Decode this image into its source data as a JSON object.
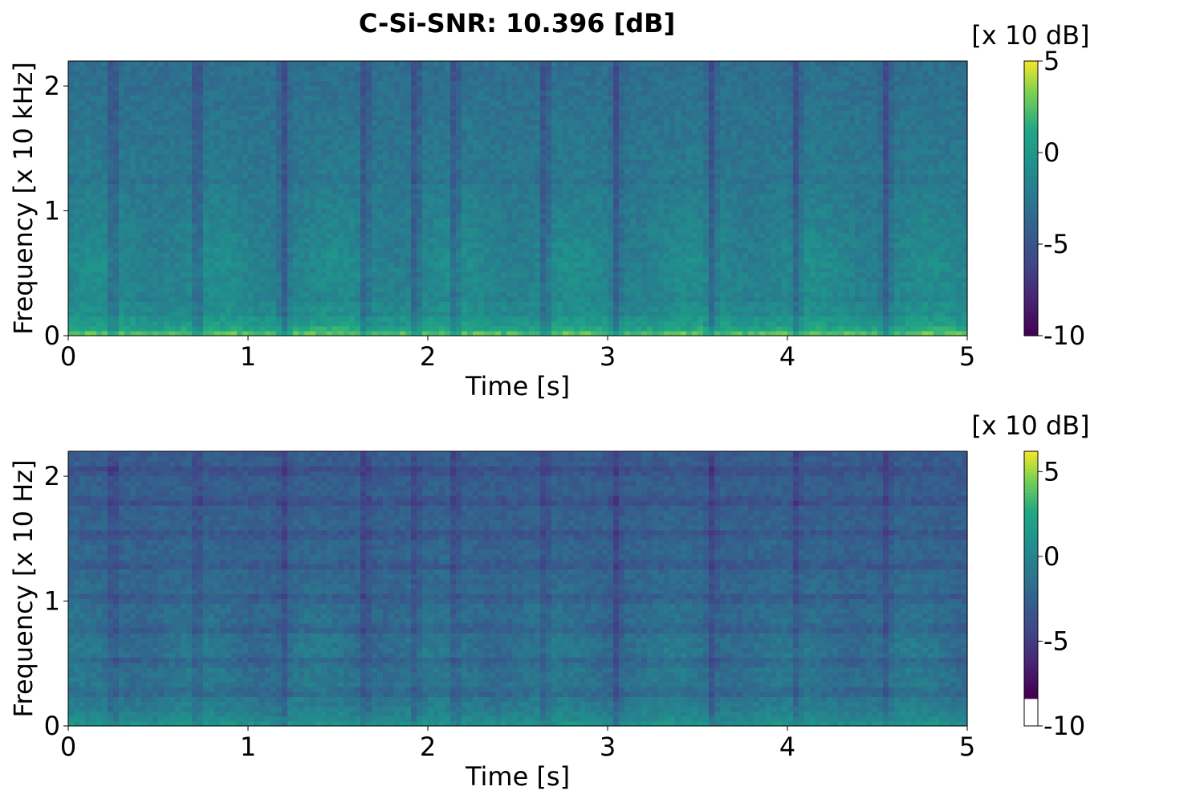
{
  "figure": {
    "title": "C-Si-SNR: 10.396 [dB]"
  },
  "chart_data": [
    {
      "type": "heatmap",
      "name": "top-spectrogram",
      "title": "C-Si-SNR: 10.396 [dB]",
      "xlabel": "Time [s]",
      "ylabel": "Frequency [x 10 kHz]",
      "xlim": [
        0,
        5
      ],
      "ylim": [
        0,
        2.2
      ],
      "xticks": [
        0,
        1,
        2,
        3,
        4,
        5
      ],
      "xtick_labels": [
        "0",
        "1",
        "2",
        "3",
        "4",
        "5"
      ],
      "yticks": [
        0,
        1,
        2
      ],
      "ytick_labels": [
        "0",
        "1",
        "2"
      ],
      "colormap": "viridis",
      "colorbar": {
        "label": "[x 10 dB]",
        "vmin": -10,
        "vmax": 5,
        "ticks": [
          5,
          0,
          -5,
          -10
        ],
        "tick_labels": [
          "5",
          "0",
          "-5",
          "-10"
        ]
      },
      "silence_gaps_s": [
        0.25,
        0.72,
        1.2,
        1.65,
        1.93,
        2.15,
        2.65,
        3.05,
        3.58,
        4.05,
        4.55
      ],
      "harmonic_bands": [
        0.08,
        0.18,
        0.3,
        1.25
      ]
    },
    {
      "type": "heatmap",
      "name": "bottom-spectrogram",
      "xlabel": "Time [s]",
      "ylabel": "Frequency [x 10 Hz]",
      "xlim": [
        0,
        5
      ],
      "ylim": [
        0,
        2.2
      ],
      "xticks": [
        0,
        1,
        2,
        3,
        4,
        5
      ],
      "xtick_labels": [
        "0",
        "1",
        "2",
        "3",
        "4",
        "5"
      ],
      "yticks": [
        0,
        1,
        2
      ],
      "ytick_labels": [
        "0",
        "1",
        "2"
      ],
      "colormap": "viridis",
      "colorbar": {
        "label": "[x 10 dB]",
        "vmin": -10,
        "vmax": 6.2,
        "under_color_below": -8.2,
        "ticks": [
          5,
          0,
          -5,
          -10
        ],
        "tick_labels": [
          "5",
          "0",
          "-5",
          "-10"
        ]
      },
      "silence_gaps_s": [
        0.25,
        0.72,
        1.2,
        1.65,
        1.93,
        2.15,
        2.65,
        3.05,
        3.58,
        4.05,
        4.55
      ],
      "harmonic_bands": [
        0.27,
        0.52,
        0.78,
        1.03,
        1.29,
        1.54,
        1.8,
        2.05
      ]
    }
  ]
}
